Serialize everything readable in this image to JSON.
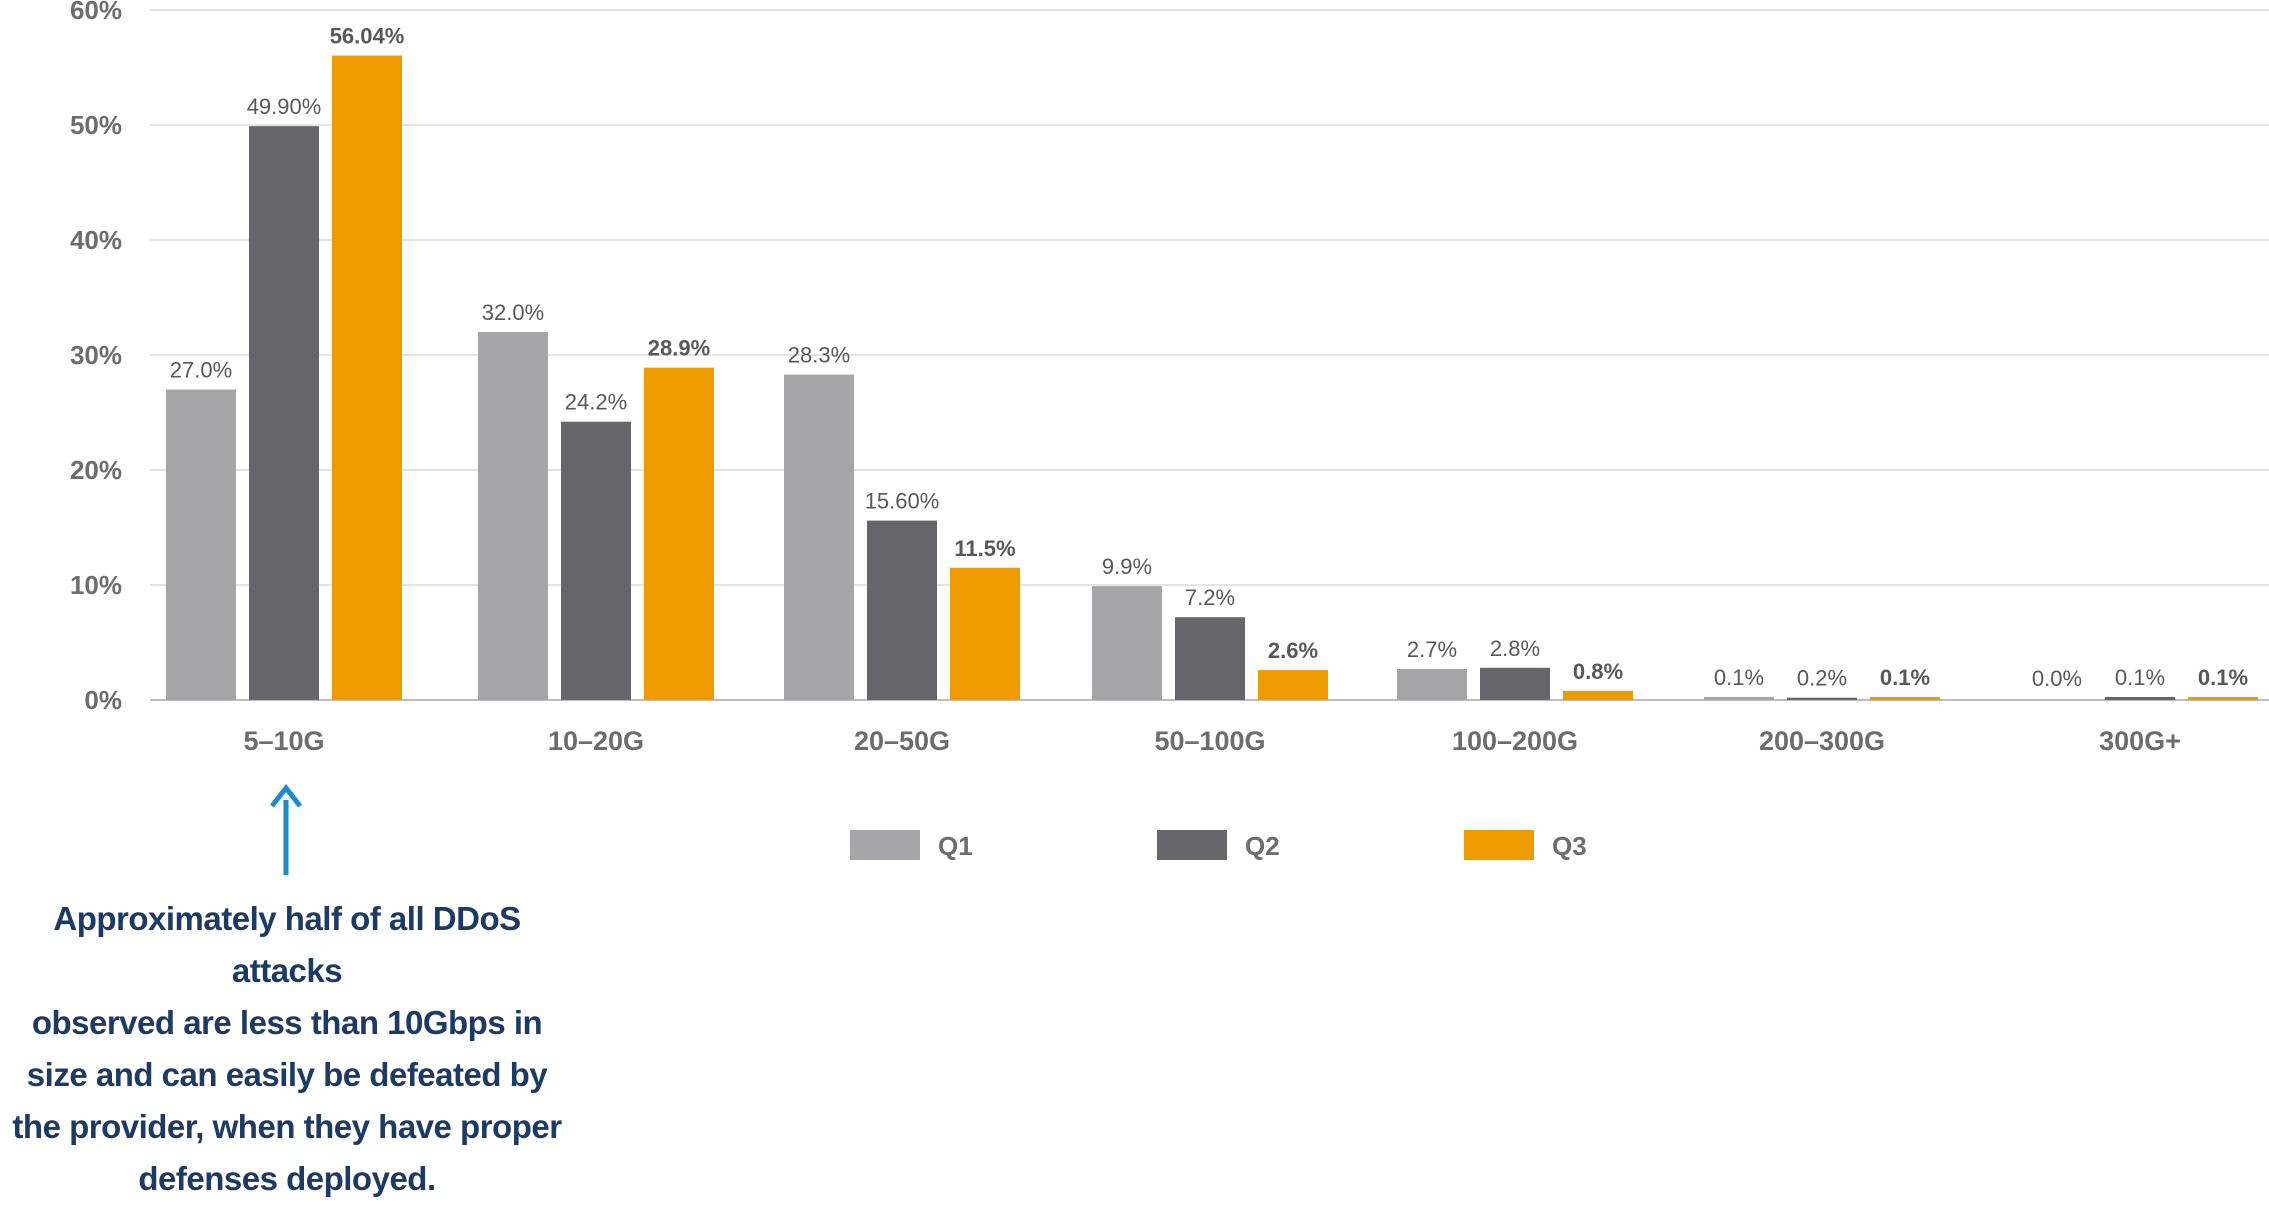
{
  "chart_data": {
    "type": "bar",
    "categories": [
      "5–10G",
      "10–20G",
      "20–50G",
      "50–100G",
      "100–200G",
      "200–300G",
      "300G+"
    ],
    "series": [
      {
        "name": "Q1",
        "color": "#a5a5a8",
        "values": [
          27.0,
          32.0,
          28.3,
          9.9,
          2.7,
          0.1,
          0.0
        ],
        "labels": [
          "27.0%",
          "32.0%",
          "28.3%",
          "9.9%",
          "2.7%",
          "0.1%",
          "0.0%"
        ]
      },
      {
        "name": "Q2",
        "color": "#666569",
        "values": [
          49.9,
          24.2,
          15.6,
          7.2,
          2.8,
          0.2,
          0.1
        ],
        "labels": [
          "49.90%",
          "24.2%",
          "15.60%",
          "7.2%",
          "2.8%",
          "0.2%",
          "0.1%"
        ]
      },
      {
        "name": "Q3",
        "color": "#ee9b00",
        "values": [
          56.04,
          28.9,
          11.5,
          2.6,
          0.8,
          0.1,
          0.1
        ],
        "labels": [
          "56.04%",
          "28.9%",
          "11.5%",
          "2.6%",
          "0.8%",
          "0.1%",
          "0.1%"
        ]
      }
    ],
    "y_ticks": [
      "0%",
      "10%",
      "20%",
      "30%",
      "40%",
      "50%",
      "60%"
    ],
    "ylim": [
      0,
      60
    ],
    "grid": true,
    "legend_position": "bottom"
  },
  "annotation": {
    "text": "Approximately half of all DDoS attacks\nobserved are less than 10Gbps in\nsize and can easily be defeated by\nthe provider, when they have proper\ndefenses deployed.",
    "arrow_color": "#1d8bc9",
    "text_color": "#1c3a63"
  }
}
